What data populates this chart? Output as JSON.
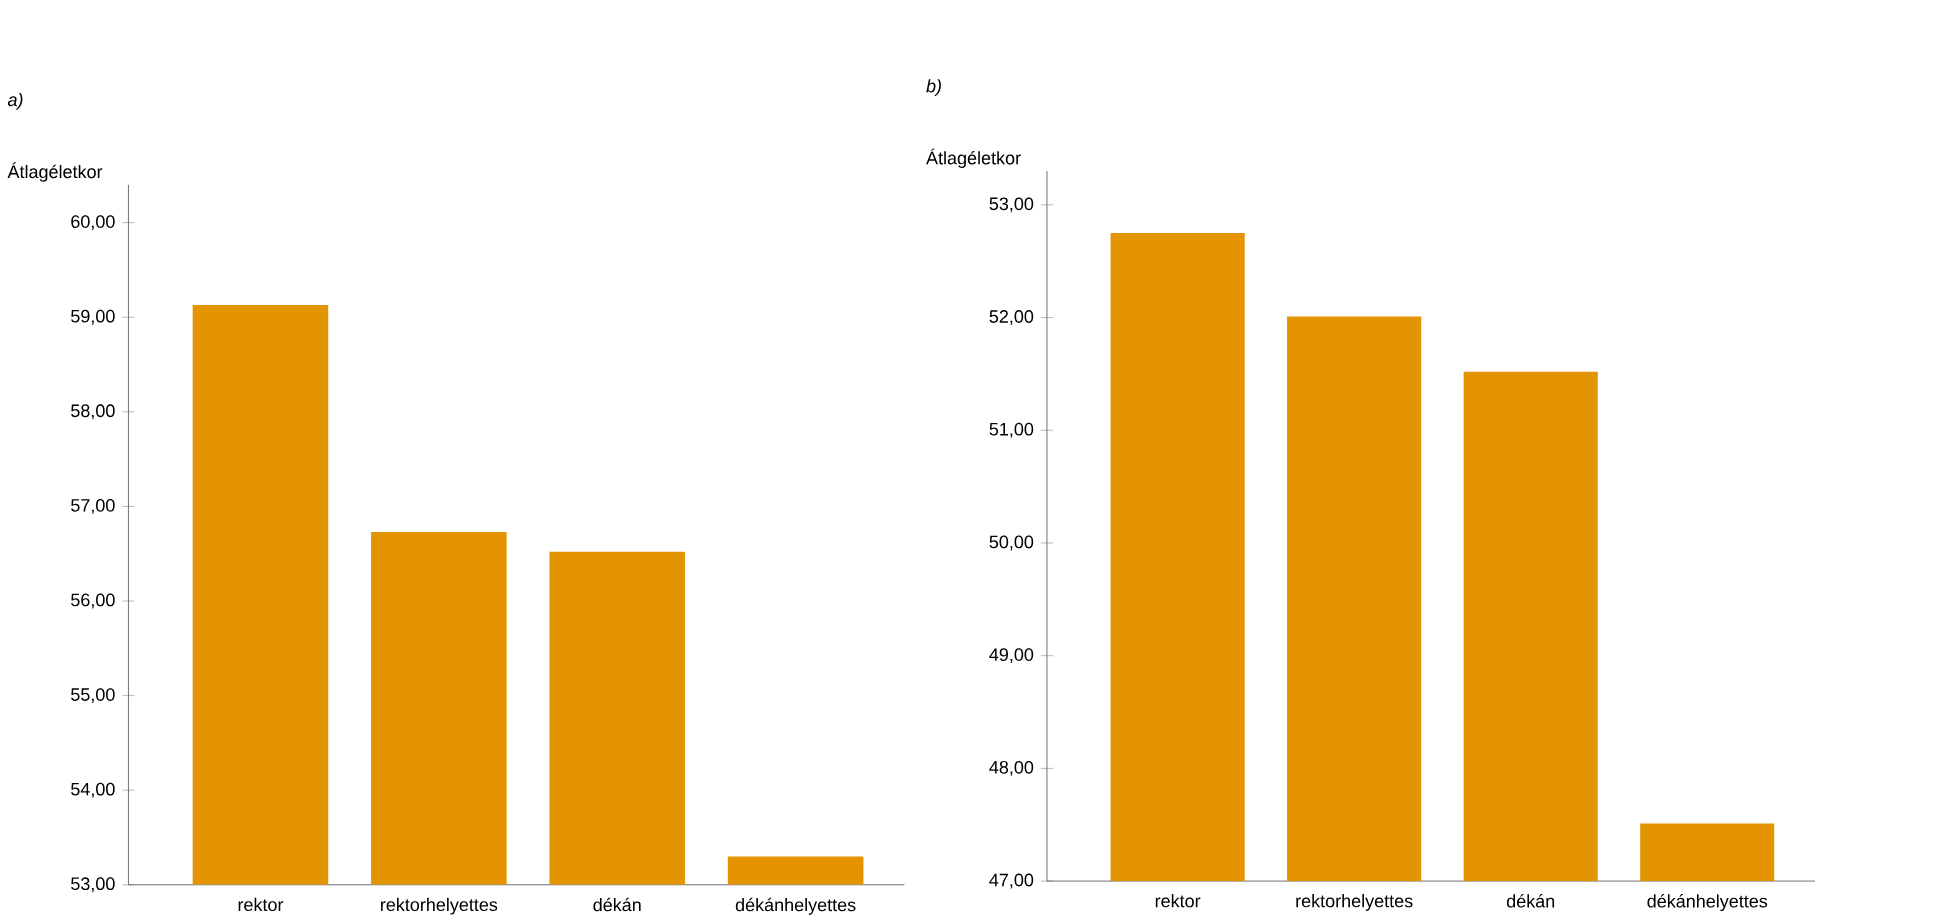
{
  "chart_data": [
    {
      "type": "bar",
      "title": "a)",
      "ylabel": "Átlagéletkor",
      "categories": [
        "rektor",
        "rektorhelyettes",
        "dékán",
        "dékánhelyettes"
      ],
      "values": [
        59.13,
        56.73,
        56.52,
        53.3
      ],
      "color": "#e39400",
      "ylim": [
        53,
        60.4
      ],
      "yticks": [
        {
          "value": 53,
          "label": "53,00"
        },
        {
          "value": 54,
          "label": "54,00"
        },
        {
          "value": 55,
          "label": "55,00"
        },
        {
          "value": 56,
          "label": "56,00"
        },
        {
          "value": 57,
          "label": "57,00"
        },
        {
          "value": 58,
          "label": "58,00"
        },
        {
          "value": 59,
          "label": "59,00"
        },
        {
          "value": 60,
          "label": "60,00"
        }
      ]
    },
    {
      "type": "bar",
      "title": "b)",
      "ylabel": "Átlagéletkor",
      "categories": [
        "rektor",
        "rektorhelyettes",
        "dékán",
        "dékánhelyettes"
      ],
      "values": [
        52.75,
        52.01,
        51.52,
        47.51
      ],
      "color": "#e39400",
      "ylim": [
        47,
        53.3
      ],
      "yticks": [
        {
          "value": 47,
          "label": "47,00"
        },
        {
          "value": 48,
          "label": "48,00"
        },
        {
          "value": 49,
          "label": "49,00"
        },
        {
          "value": 50,
          "label": "50,00"
        },
        {
          "value": 51,
          "label": "51,00"
        },
        {
          "value": 52,
          "label": "52,00"
        },
        {
          "value": 53,
          "label": "53,00"
        }
      ]
    }
  ]
}
